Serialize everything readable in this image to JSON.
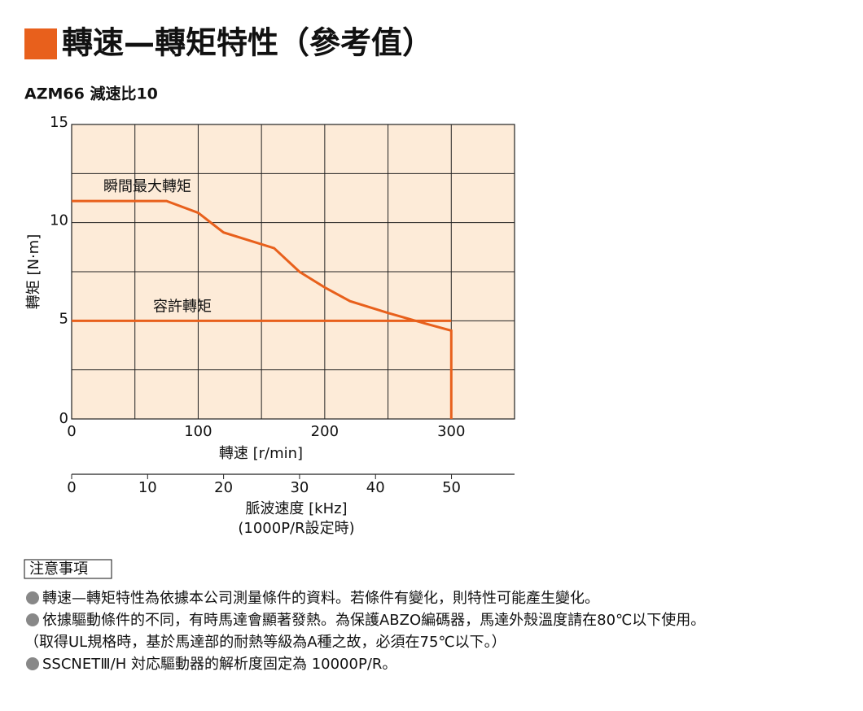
{
  "title": "轉速—轉矩特性（參考值）",
  "chart_data": {
    "type": "line",
    "subtitle": "AZM66 減速比10",
    "xlabel": "轉速 [r/min]",
    "ylabel": "轉矩 [N·m]",
    "xlim": [
      0,
      350
    ],
    "ylim": [
      0,
      15
    ],
    "xticks": [
      0,
      100,
      200,
      300
    ],
    "yticks": [
      0,
      5,
      10,
      15
    ],
    "xminor_ticks": [
      50,
      150,
      250,
      350
    ],
    "yminor_ticks": [
      2.5,
      7.5,
      12.5
    ],
    "grid": true,
    "background": "#fdebd8",
    "series": [
      {
        "name": "瞬間最大轉矩",
        "color": "#e8601c",
        "x": [
          0,
          75,
          100,
          120,
          160,
          180,
          200,
          220,
          250,
          280,
          300,
          300
        ],
        "values": [
          11.1,
          11.1,
          10.5,
          9.5,
          8.7,
          7.5,
          6.7,
          6.0,
          5.4,
          4.85,
          4.5,
          0
        ]
      },
      {
        "name": "容許轉矩",
        "color": "#e8601c",
        "x": [
          0,
          300
        ],
        "values": [
          5,
          5
        ]
      }
    ],
    "x2label": "脈波速度 [kHz]",
    "x2note": "(1000P/R設定時)",
    "x2lim": [
      0,
      58.3
    ],
    "x2ticks": [
      0,
      10,
      20,
      30,
      40,
      50
    ]
  },
  "notes": {
    "heading": "注意事項",
    "items": [
      "轉速—轉矩特性為依據本公司測量條件的資料。若條件有變化，則特性可能產生變化。",
      "依據驅動條件的不同，有時馬達會顯著發熱。為保護ABZO編碼器，馬達外殼溫度請在80℃以下使用。",
      "（取得UL規格時，基於馬達部的耐熱等級為A種之故，必須在75℃以下。）",
      "SSCNETⅢ/H 対応驅動器的解析度固定為 10000P/R。"
    ]
  }
}
